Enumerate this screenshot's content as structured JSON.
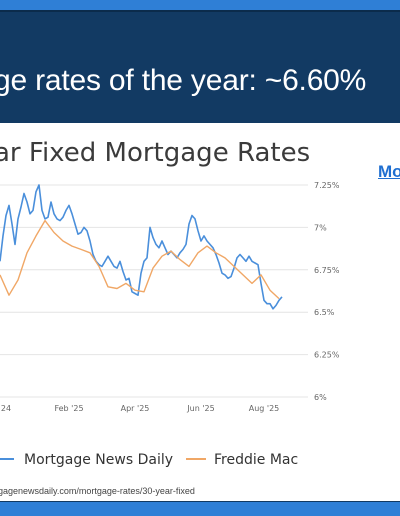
{
  "headline": "ge rates of the year: ~6.60%",
  "chart_title": "ar Fixed Mortgage Rates",
  "side_link": "Mo",
  "source": "gagenewsdaily.com/mortgage-rates/30-year-fixed",
  "colors": {
    "mnd": "#4a8fdb",
    "freddie": "#f0a766",
    "background": "#123a63",
    "accent": "#2f7fd6"
  },
  "chart_data": {
    "type": "line",
    "y_axis": {
      "side": "right",
      "min": 6.0,
      "max": 7.25,
      "ticks": [
        7.25,
        7.0,
        6.75,
        6.5,
        6.25,
        6.0
      ],
      "tick_labels": [
        "7.25%",
        "7%",
        "6.75%",
        "6.5%",
        "6.25%",
        "6%"
      ]
    },
    "x_tick_labels": [
      "24",
      "Feb '25",
      "Apr '25",
      "Jun '25",
      "Aug '25"
    ],
    "x_range": [
      0,
      100
    ],
    "x_ticks": [
      2,
      23,
      45,
      67,
      88
    ],
    "legend": {
      "placement": "bottom"
    },
    "series": [
      {
        "name": "Mortgage News Daily",
        "color": "#4a8fdb",
        "points": [
          [
            0,
            6.8
          ],
          [
            1,
            6.95
          ],
          [
            2,
            7.07
          ],
          [
            3,
            7.13
          ],
          [
            4,
            7.02
          ],
          [
            5,
            6.9
          ],
          [
            6,
            7.05
          ],
          [
            7,
            7.12
          ],
          [
            8,
            7.2
          ],
          [
            9,
            7.15
          ],
          [
            10,
            7.08
          ],
          [
            11,
            7.1
          ],
          [
            12,
            7.21
          ],
          [
            13,
            7.25
          ],
          [
            14,
            7.1
          ],
          [
            15,
            7.05
          ],
          [
            16,
            7.06
          ],
          [
            17,
            7.15
          ],
          [
            18,
            7.08
          ],
          [
            19,
            7.05
          ],
          [
            20,
            7.04
          ],
          [
            21,
            7.06
          ],
          [
            22,
            7.1
          ],
          [
            23,
            7.13
          ],
          [
            24,
            7.08
          ],
          [
            25,
            7.02
          ],
          [
            26,
            6.96
          ],
          [
            27,
            6.97
          ],
          [
            28,
            7.0
          ],
          [
            29,
            6.98
          ],
          [
            30,
            6.92
          ],
          [
            31,
            6.84
          ],
          [
            32,
            6.8
          ],
          [
            33,
            6.78
          ],
          [
            34,
            6.77
          ],
          [
            35,
            6.8
          ],
          [
            36,
            6.83
          ],
          [
            37,
            6.8
          ],
          [
            38,
            6.77
          ],
          [
            39,
            6.76
          ],
          [
            40,
            6.8
          ],
          [
            41,
            6.74
          ],
          [
            42,
            6.69
          ],
          [
            43,
            6.7
          ],
          [
            44,
            6.62
          ],
          [
            45,
            6.61
          ],
          [
            46,
            6.6
          ],
          [
            47,
            6.73
          ],
          [
            48,
            6.8
          ],
          [
            49,
            6.82
          ],
          [
            50,
            7.0
          ],
          [
            51,
            6.94
          ],
          [
            52,
            6.9
          ],
          [
            53,
            6.88
          ],
          [
            54,
            6.92
          ],
          [
            55,
            6.88
          ],
          [
            56,
            6.84
          ],
          [
            57,
            6.86
          ],
          [
            58,
            6.84
          ],
          [
            59,
            6.82
          ],
          [
            60,
            6.85
          ],
          [
            61,
            6.87
          ],
          [
            62,
            6.9
          ],
          [
            63,
            7.02
          ],
          [
            64,
            7.07
          ],
          [
            65,
            7.05
          ],
          [
            66,
            6.98
          ],
          [
            67,
            6.92
          ],
          [
            68,
            6.95
          ],
          [
            69,
            6.92
          ],
          [
            70,
            6.9
          ],
          [
            71,
            6.88
          ],
          [
            72,
            6.84
          ],
          [
            73,
            6.79
          ],
          [
            74,
            6.73
          ],
          [
            75,
            6.72
          ],
          [
            76,
            6.7
          ],
          [
            77,
            6.71
          ],
          [
            78,
            6.76
          ],
          [
            79,
            6.82
          ],
          [
            80,
            6.84
          ],
          [
            81,
            6.82
          ],
          [
            82,
            6.8
          ],
          [
            83,
            6.83
          ],
          [
            84,
            6.8
          ],
          [
            85,
            6.79
          ],
          [
            86,
            6.78
          ],
          [
            87,
            6.67
          ],
          [
            88,
            6.57
          ],
          [
            89,
            6.55
          ],
          [
            90,
            6.55
          ],
          [
            91,
            6.52
          ],
          [
            92,
            6.54
          ],
          [
            93,
            6.57
          ],
          [
            94,
            6.59
          ]
        ]
      },
      {
        "name": "Freddie Mac",
        "color": "#f0a766",
        "points": [
          [
            0,
            6.72
          ],
          [
            3,
            6.6
          ],
          [
            6,
            6.69
          ],
          [
            9,
            6.85
          ],
          [
            12,
            6.95
          ],
          [
            15,
            7.04
          ],
          [
            18,
            6.97
          ],
          [
            21,
            6.92
          ],
          [
            24,
            6.89
          ],
          [
            27,
            6.87
          ],
          [
            30,
            6.85
          ],
          [
            33,
            6.77
          ],
          [
            36,
            6.65
          ],
          [
            39,
            6.64
          ],
          [
            42,
            6.67
          ],
          [
            45,
            6.63
          ],
          [
            48,
            6.62
          ],
          [
            51,
            6.76
          ],
          [
            54,
            6.83
          ],
          [
            57,
            6.86
          ],
          [
            60,
            6.81
          ],
          [
            63,
            6.77
          ],
          [
            66,
            6.85
          ],
          [
            69,
            6.89
          ],
          [
            72,
            6.85
          ],
          [
            75,
            6.82
          ],
          [
            78,
            6.77
          ],
          [
            81,
            6.72
          ],
          [
            84,
            6.67
          ],
          [
            87,
            6.72
          ],
          [
            90,
            6.63
          ],
          [
            93,
            6.58
          ]
        ]
      }
    ]
  }
}
